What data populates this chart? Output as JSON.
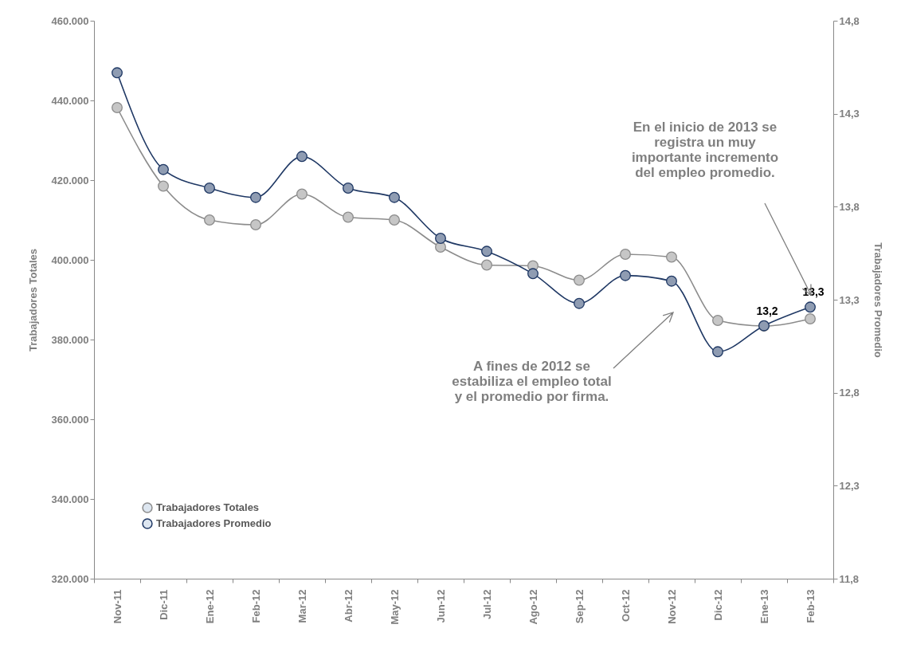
{
  "chart_data": {
    "type": "line",
    "ylabel": "Trabajadores Totales",
    "y2label": "Trabajadores Promedio",
    "categories": [
      "Nov-11",
      "Dic-11",
      "Ene-12",
      "Feb-12",
      "Mar-12",
      "Abr-12",
      "May-12",
      "Jun-12",
      "Jul-12",
      "Ago-12",
      "Sep-12",
      "Oct-12",
      "Nov-12",
      "Dic-12",
      "Ene-13",
      "Feb-13"
    ],
    "series": [
      {
        "name": "Trabajadores Totales",
        "color": "#8c8c8c",
        "values": [
          438200,
          418500,
          410000,
          408800,
          416500,
          410700,
          410000,
          403200,
          398700,
          398500,
          394900,
          401400,
          400700,
          384800,
          383400,
          385200
        ]
      },
      {
        "name": "Trabajadores Promedio",
        "color": "#1f3864",
        "axis": "y2",
        "values": [
          14.52,
          14.0,
          13.9,
          13.85,
          14.07,
          13.9,
          13.85,
          13.63,
          13.56,
          13.44,
          13.28,
          13.43,
          13.4,
          13.02,
          13.16,
          13.26
        ],
        "value_labels": [
          null,
          null,
          null,
          null,
          null,
          null,
          null,
          null,
          null,
          null,
          null,
          null,
          null,
          null,
          "13,2",
          "13,3"
        ]
      }
    ],
    "ylim": [
      320000,
      460000
    ],
    "yticks": [
      {
        "value": 320000,
        "label": "320.000"
      },
      {
        "value": 340000,
        "label": "340.000"
      },
      {
        "value": 360000,
        "label": "360.000"
      },
      {
        "value": 380000,
        "label": "380.000"
      },
      {
        "value": 400000,
        "label": "400.000"
      },
      {
        "value": 420000,
        "label": "420.000"
      },
      {
        "value": 440000,
        "label": "440.000"
      },
      {
        "value": 460000,
        "label": "460.000"
      }
    ],
    "y2lim": [
      11.8,
      14.8
    ],
    "y2ticks": [
      {
        "value": 11.8,
        "label": "11,8"
      },
      {
        "value": 12.3,
        "label": "12,3"
      },
      {
        "value": 12.8,
        "label": "12,8"
      },
      {
        "value": 13.3,
        "label": "13,3"
      },
      {
        "value": 13.8,
        "label": "13,8"
      },
      {
        "value": 14.3,
        "label": "14,3"
      },
      {
        "value": 14.8,
        "label": "14,8"
      }
    ],
    "grid": false,
    "legend": "bottom left",
    "marker": "circle",
    "line_style": "solid",
    "annotations": [
      "En el inicio de 2013 se registra un muy importante incremento del empleo promedio.",
      "A fines de 2012 se estabiliza el empleo total y el promedio por firma."
    ]
  }
}
